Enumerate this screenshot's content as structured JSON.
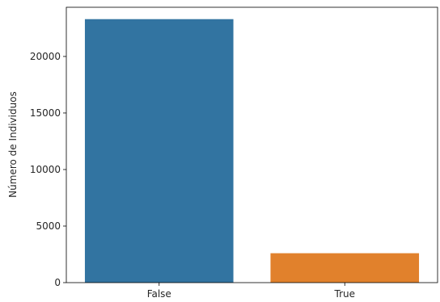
{
  "chart_data": {
    "type": "bar",
    "title": "",
    "xlabel": "",
    "ylabel": "Número de Individuos",
    "categories": [
      "False",
      "True"
    ],
    "values": [
      23300,
      2600
    ],
    "colors": [
      "#3274a1",
      "#e1812c"
    ],
    "ylim": [
      0,
      24350
    ],
    "yticks": [
      0,
      5000,
      10000,
      15000,
      20000
    ],
    "ytick_labels": [
      "0",
      "5000",
      "10000",
      "15000",
      "20000"
    ],
    "grid": false,
    "legend": "none"
  }
}
